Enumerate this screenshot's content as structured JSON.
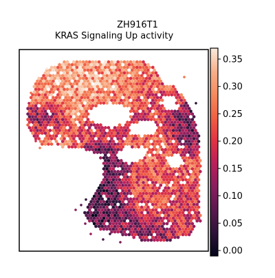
{
  "chart_data": {
    "type": "scatter",
    "title": "ZH916T1",
    "subtitle": "KRAS Signaling Up activity",
    "xlabel": "",
    "ylabel": "",
    "legend": "none",
    "grid": false,
    "axes_ticks": "hidden",
    "marker": "hexagon",
    "colormap": "rocket",
    "colorbar": {
      "label": "",
      "range": [
        -0.01,
        0.37
      ],
      "ticks": [
        0.0,
        0.05,
        0.1,
        0.15,
        0.2,
        0.25,
        0.3,
        0.35
      ],
      "tick_labels": [
        "0.00",
        "0.05",
        "0.10",
        "0.15",
        "0.20",
        "0.25",
        "0.30",
        "0.35"
      ],
      "stops": [
        "#03051a",
        "#2d1339",
        "#5a1a4f",
        "#8a1e5e",
        "#b91f5a",
        "#e13342",
        "#f06043",
        "#f58b5f",
        "#f7b08b",
        "#faebdd"
      ]
    },
    "regions": [
      {
        "x": 0.4,
        "y": 0.88,
        "rx": 0.15,
        "ry": 0.07,
        "value": 0.3
      },
      {
        "x": 0.22,
        "y": 0.78,
        "rx": 0.12,
        "ry": 0.08,
        "value": 0.29
      },
      {
        "x": 0.14,
        "y": 0.66,
        "rx": 0.07,
        "ry": 0.07,
        "value": 0.12
      },
      {
        "x": 0.17,
        "y": 0.55,
        "rx": 0.1,
        "ry": 0.07,
        "value": 0.25
      },
      {
        "x": 0.55,
        "y": 0.6,
        "rx": 0.14,
        "ry": 0.06,
        "value": 0.19
      },
      {
        "x": 0.6,
        "y": 0.85,
        "rx": 0.1,
        "ry": 0.07,
        "value": 0.26
      },
      {
        "x": 0.7,
        "y": 0.78,
        "rx": 0.07,
        "ry": 0.07,
        "value": 0.22
      },
      {
        "x": 0.88,
        "y": 0.58,
        "rx": 0.07,
        "ry": 0.06,
        "value": 0.1
      },
      {
        "x": 0.7,
        "y": 0.5,
        "rx": 0.12,
        "ry": 0.08,
        "value": 0.25
      },
      {
        "x": 0.48,
        "y": 0.44,
        "rx": 0.1,
        "ry": 0.06,
        "value": 0.08
      },
      {
        "x": 0.42,
        "y": 0.25,
        "rx": 0.12,
        "ry": 0.1,
        "value": 0.07
      },
      {
        "x": 0.72,
        "y": 0.3,
        "rx": 0.14,
        "ry": 0.1,
        "value": 0.22
      },
      {
        "x": 0.63,
        "y": 0.12,
        "rx": 0.1,
        "ry": 0.06,
        "value": 0.13
      },
      {
        "x": 0.85,
        "y": 0.22,
        "rx": 0.07,
        "ry": 0.07,
        "value": 0.19
      }
    ]
  }
}
